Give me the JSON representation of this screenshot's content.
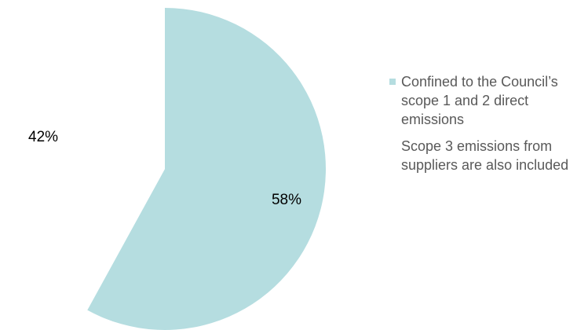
{
  "chart_data": {
    "type": "pie",
    "categories": [
      "Confined to the Council’s scope 1 and 2 direct emissions",
      "Scope 3 emissions from suppliers are also included"
    ],
    "values": [
      58,
      42
    ],
    "value_labels": [
      "58%",
      "42%"
    ],
    "colors": [
      "#b5dde0",
      "#ffffff"
    ]
  }
}
